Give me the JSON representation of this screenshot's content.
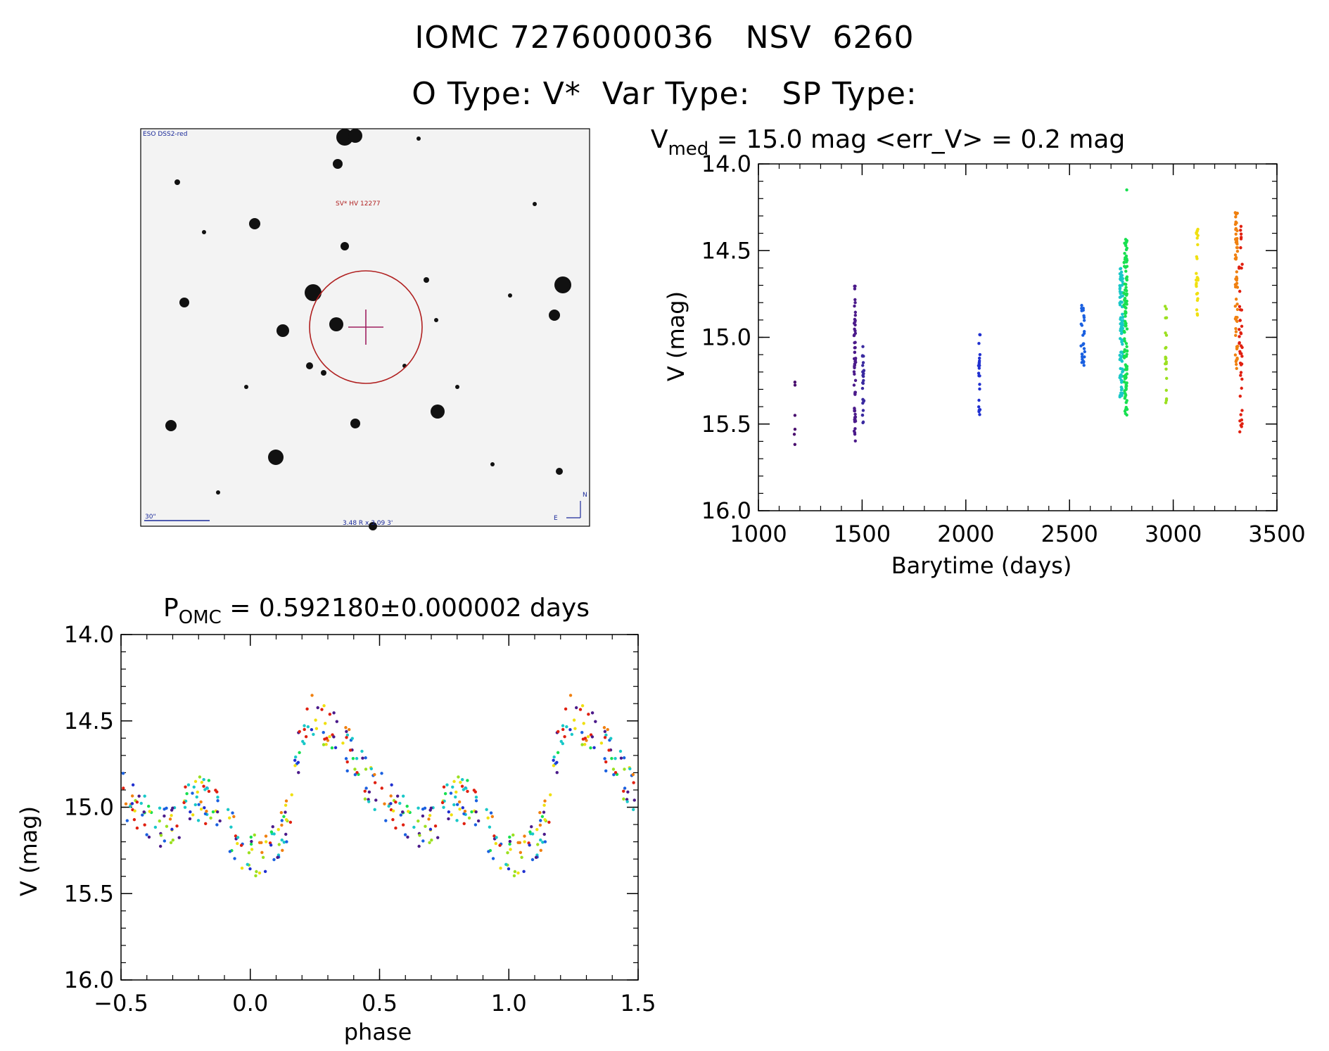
{
  "header": {
    "title_line1": "IOMC 7276000036   NSV  6260",
    "title_line2": "O Type: V*  Var Type:   SP Type:"
  },
  "finder": {
    "survey_label": "ESO DSS2-red",
    "object_label": "SV* HV 12277",
    "scale_label": "30\"",
    "fov_label": "3.48 R x 3.09 3'",
    "north_label": "N",
    "east_label": "E",
    "colors": {
      "circle": "#b02020",
      "crosshair": "#a02060",
      "labels": "#1b2a9a"
    }
  },
  "chart_data": [
    {
      "type": "scatter",
      "title_main": "V",
      "title_sub": "med",
      "title_rest": " = 15.0 mag <err_V> = 0.2 mag",
      "xlabel": "Barytime (days)",
      "ylabel": "V (mag)",
      "xlim": [
        1000,
        3500
      ],
      "ylim": [
        16.0,
        14.0
      ],
      "xticks": [
        "1000",
        "1500",
        "2000",
        "2500",
        "3000",
        "3500"
      ],
      "yticks": [
        "14.0",
        "14.5",
        "15.0",
        "15.5",
        "16.0"
      ],
      "grid": false,
      "point_color_scale": "rainbow by time",
      "series": [
        {
          "x_center": 1175,
          "x_spread": 3,
          "y_min": 15.1,
          "y_max": 15.62,
          "count": 6,
          "color": "#4a0f6e"
        },
        {
          "x_center": 1465,
          "x_spread": 4,
          "y_min": 14.7,
          "y_max": 15.6,
          "count": 60,
          "color": "#4b1a8a"
        },
        {
          "x_center": 1505,
          "x_spread": 4,
          "y_min": 15.05,
          "y_max": 15.5,
          "count": 25,
          "color": "#3a2aa0"
        },
        {
          "x_center": 2065,
          "x_spread": 4,
          "y_min": 14.97,
          "y_max": 15.45,
          "count": 22,
          "color": "#2030d0"
        },
        {
          "x_center": 2565,
          "x_spread": 10,
          "y_min": 14.8,
          "y_max": 15.18,
          "count": 30,
          "color": "#1a60e0"
        },
        {
          "x_center": 2750,
          "x_spread": 8,
          "y_min": 14.6,
          "y_max": 15.35,
          "count": 90,
          "color": "#19c8c8"
        },
        {
          "x_center": 2770,
          "x_spread": 8,
          "y_min": 14.43,
          "y_max": 15.45,
          "count": 110,
          "color": "#18e050"
        },
        {
          "x_center": 2775,
          "x_spread": 1,
          "y_min": 14.15,
          "y_max": 14.15,
          "count": 1,
          "color": "#18e050"
        },
        {
          "x_center": 2965,
          "x_spread": 4,
          "y_min": 14.82,
          "y_max": 15.43,
          "count": 20,
          "color": "#9be020"
        },
        {
          "x_center": 3115,
          "x_spread": 5,
          "y_min": 14.37,
          "y_max": 14.93,
          "count": 25,
          "color": "#f0e010"
        },
        {
          "x_center": 3305,
          "x_spread": 6,
          "y_min": 14.27,
          "y_max": 15.2,
          "count": 60,
          "color": "#f08010"
        },
        {
          "x_center": 3325,
          "x_spread": 8,
          "y_min": 14.35,
          "y_max": 15.55,
          "count": 45,
          "color": "#e02010"
        }
      ]
    },
    {
      "type": "scatter",
      "title_main": "P",
      "title_sub": "OMC",
      "title_rest": " = 0.592180±0.000002 days",
      "xlabel": "phase",
      "ylabel": "V (mag)",
      "xlim": [
        -0.5,
        1.5
      ],
      "ylim": [
        16.0,
        14.0
      ],
      "xticks": [
        "−0.5",
        "0.0",
        "0.5",
        "1.0",
        "1.5"
      ],
      "yticks": [
        "14.0",
        "14.5",
        "15.0",
        "15.5",
        "16.0"
      ],
      "grid": false,
      "phase_profile": {
        "phase": [
          0.0,
          0.05,
          0.1,
          0.15,
          0.2,
          0.25,
          0.3,
          0.35,
          0.4,
          0.45,
          0.5,
          0.55,
          0.6,
          0.65,
          0.7,
          0.75,
          0.8,
          0.85,
          0.9,
          0.95,
          1.0
        ],
        "mag": [
          15.28,
          15.3,
          15.2,
          15.05,
          14.55,
          14.45,
          14.55,
          14.62,
          14.7,
          14.85,
          14.92,
          15.0,
          15.05,
          15.12,
          15.1,
          15.0,
          14.95,
          14.98,
          15.08,
          15.2,
          15.28
        ],
        "scatter": 0.13
      },
      "colors": [
        "#4b1a8a",
        "#2030d0",
        "#1a60e0",
        "#19c8c8",
        "#18e050",
        "#9be020",
        "#f0e010",
        "#f08010",
        "#e02010"
      ]
    }
  ]
}
